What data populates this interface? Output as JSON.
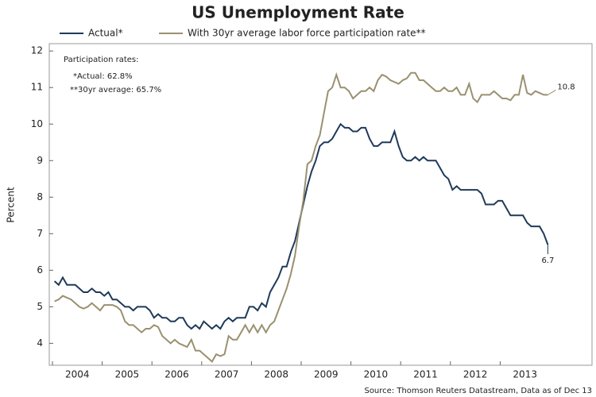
{
  "chart_data": {
    "type": "line",
    "title": "US Unemployment Rate",
    "y_label": "Percent",
    "source": "Source: Thomson Reuters Datastream, Data as of Dec 13",
    "notes": [
      "Participation rates:",
      "*Actual: 62.8%",
      "**30yr average: 65.7%"
    ],
    "categories": [
      "2004",
      null,
      null,
      null,
      null,
      null,
      null,
      null,
      null,
      null,
      null,
      null,
      "2005",
      null,
      null,
      null,
      null,
      null,
      null,
      null,
      null,
      null,
      null,
      null,
      "2006",
      null,
      null,
      null,
      null,
      null,
      null,
      null,
      null,
      null,
      null,
      null,
      "2007",
      null,
      null,
      null,
      null,
      null,
      null,
      null,
      null,
      null,
      null,
      null,
      "2008",
      null,
      null,
      null,
      null,
      null,
      null,
      null,
      null,
      null,
      null,
      null,
      "2009",
      null,
      null,
      null,
      null,
      null,
      null,
      null,
      null,
      null,
      null,
      null,
      "2010",
      null,
      null,
      null,
      null,
      null,
      null,
      null,
      null,
      null,
      null,
      null,
      "2011",
      null,
      null,
      null,
      null,
      null,
      null,
      null,
      null,
      null,
      null,
      null,
      "2012",
      null,
      null,
      null,
      null,
      null,
      null,
      null,
      null,
      null,
      null,
      null,
      "2013",
      null,
      null,
      null,
      null,
      null,
      null,
      null,
      null,
      null,
      null,
      null
    ],
    "series": [
      {
        "name": "Actual*",
        "color": "#1f3a5a",
        "end_label": "6.7",
        "values": [
          5.7,
          5.6,
          5.8,
          5.6,
          5.6,
          5.6,
          5.5,
          5.4,
          5.4,
          5.5,
          5.4,
          5.4,
          5.3,
          5.4,
          5.2,
          5.2,
          5.1,
          5.0,
          5.0,
          4.9,
          5.0,
          5.0,
          5.0,
          4.9,
          4.7,
          4.8,
          4.7,
          4.7,
          4.6,
          4.6,
          4.7,
          4.7,
          4.5,
          4.4,
          4.5,
          4.4,
          4.6,
          4.5,
          4.4,
          4.5,
          4.4,
          4.6,
          4.7,
          4.6,
          4.7,
          4.7,
          4.7,
          5.0,
          5.0,
          4.9,
          5.1,
          5.0,
          5.4,
          5.6,
          5.8,
          6.1,
          6.1,
          6.5,
          6.8,
          7.3,
          7.8,
          8.3,
          8.7,
          9.0,
          9.4,
          9.5,
          9.5,
          9.6,
          9.8,
          10.0,
          9.9,
          9.9,
          9.8,
          9.8,
          9.9,
          9.9,
          9.6,
          9.4,
          9.4,
          9.5,
          9.5,
          9.5,
          9.8,
          9.4,
          9.1,
          9.0,
          9.0,
          9.1,
          9.0,
          9.1,
          9.0,
          9.0,
          9.0,
          8.8,
          8.6,
          8.5,
          8.2,
          8.3,
          8.2,
          8.2,
          8.2,
          8.2,
          8.2,
          8.1,
          7.8,
          7.8,
          7.8,
          7.9,
          7.9,
          7.7,
          7.5,
          7.5,
          7.5,
          7.5,
          7.3,
          7.2,
          7.2,
          7.2,
          7.0,
          6.7
        ]
      },
      {
        "name": "With 30yr average labor force participation rate**",
        "color": "#9a9070",
        "end_label": "10.8",
        "values": [
          5.15,
          5.2,
          5.3,
          5.25,
          5.2,
          5.1,
          5.0,
          4.95,
          5.0,
          5.1,
          5.0,
          4.9,
          5.05,
          5.05,
          5.05,
          5.0,
          4.9,
          4.6,
          4.5,
          4.5,
          4.4,
          4.3,
          4.4,
          4.4,
          4.5,
          4.45,
          4.2,
          4.1,
          4.0,
          4.1,
          4.0,
          3.95,
          3.9,
          4.1,
          3.8,
          3.8,
          3.7,
          3.6,
          3.5,
          3.7,
          3.65,
          3.7,
          4.2,
          4.1,
          4.1,
          4.3,
          4.5,
          4.3,
          4.5,
          4.3,
          4.5,
          4.3,
          4.5,
          4.6,
          4.9,
          5.2,
          5.5,
          5.9,
          6.4,
          7.2,
          7.9,
          8.9,
          9.0,
          9.4,
          9.7,
          10.3,
          10.9,
          11.0,
          11.35,
          11.0,
          11.0,
          10.9,
          10.7,
          10.8,
          10.9,
          10.9,
          11.0,
          10.9,
          11.2,
          11.35,
          11.3,
          11.2,
          11.15,
          11.1,
          11.2,
          11.25,
          11.4,
          11.4,
          11.2,
          11.2,
          11.1,
          11.0,
          10.9,
          10.9,
          11.0,
          10.9,
          10.9,
          11.0,
          10.8,
          10.8,
          11.1,
          10.7,
          10.6,
          10.8,
          10.8,
          10.8,
          10.9,
          10.8,
          10.7,
          10.7,
          10.65,
          10.8,
          10.8,
          11.35,
          10.85,
          10.8,
          10.9,
          10.85,
          10.8,
          10.8
        ]
      }
    ],
    "ylim": [
      3.4,
      12.2
    ],
    "yticks": [
      4,
      5,
      6,
      7,
      8,
      9,
      10,
      11,
      12
    ],
    "grid": false
  }
}
